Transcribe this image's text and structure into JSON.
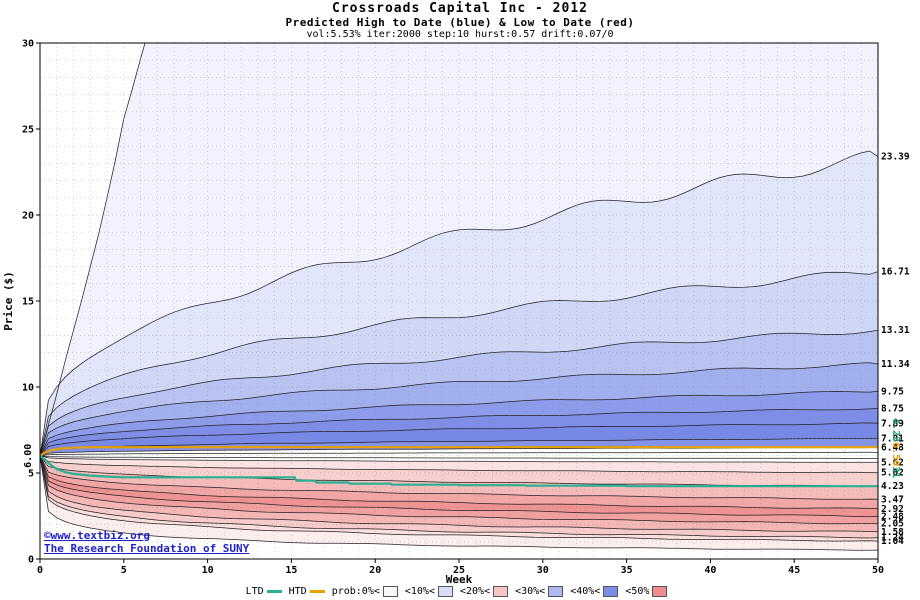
{
  "chart_data": {
    "type": "area",
    "title": "Crossroads Capital Inc - 2012",
    "subtitle": "Predicted High to Date (blue) &  Low to Date (red)",
    "params_line": "vol:5.53% iter:2000 step:10 hurst:0.57 drift:0.07/0",
    "xlabel": "Week",
    "ylabel": "Price ($)",
    "xlim": [
      0,
      50
    ],
    "ylim": [
      0,
      30
    ],
    "xticks": [
      0,
      5,
      10,
      15,
      20,
      25,
      30,
      35,
      40,
      45,
      50
    ],
    "yticks": [
      0,
      5,
      10,
      15,
      20,
      25,
      30
    ],
    "grid": true,
    "start_price": 6.0,
    "start_label": "6.00",
    "curve_exponent": 0.25,
    "high_boundaries": [
      {
        "final": 23.39,
        "label": "23.39"
      },
      {
        "final": 16.71,
        "label": "16.71"
      },
      {
        "final": 13.31,
        "label": "13.31"
      },
      {
        "final": 11.34,
        "label": "11.34"
      },
      {
        "final": 9.75,
        "label": "9.75"
      },
      {
        "final": 8.75,
        "label": "8.75"
      },
      {
        "final": 7.89,
        "label": "7.89"
      },
      {
        "final": 7.01,
        "label": "7.01"
      },
      {
        "final": 6.48,
        "label": "6.48"
      },
      {
        "final": 6.2,
        "label": ""
      }
    ],
    "low_boundaries": [
      {
        "final": 5.85,
        "label": ""
      },
      {
        "final": 5.62,
        "label": "5.62"
      },
      {
        "final": 5.02,
        "label": "5.02"
      },
      {
        "final": 4.23,
        "label": "4.23"
      },
      {
        "final": 3.47,
        "label": "3.47"
      },
      {
        "final": 2.92,
        "label": "2.92"
      },
      {
        "final": 2.48,
        "label": "2.48"
      },
      {
        "final": 2.05,
        "label": "2.05"
      },
      {
        "final": 1.58,
        "label": "1.58"
      },
      {
        "final": 1.24,
        "label": "1.24"
      },
      {
        "final": 1.04,
        "label": "1.04"
      }
    ],
    "max_curve": [
      [
        0,
        6
      ],
      [
        0.5,
        7.8
      ],
      [
        1,
        9.6
      ],
      [
        1.5,
        11.5
      ],
      [
        2,
        13.3
      ],
      [
        2.5,
        15.1
      ],
      [
        3,
        17.0
      ],
      [
        3.5,
        18.9
      ],
      [
        4,
        21.0
      ],
      [
        4.5,
        23.2
      ],
      [
        5,
        25.6
      ],
      [
        5.5,
        27.3
      ],
      [
        6,
        29.1
      ],
      [
        6.5,
        30.8
      ],
      [
        7,
        33.0
      ],
      [
        50,
        36.0
      ]
    ],
    "min_final": 0.52,
    "high_band_colors": [
      "#f1f2fd",
      "#e2e6fa",
      "#cfd6f6",
      "#b9c3f2",
      "#a2afee",
      "#8c9cea",
      "#7e8ee7",
      "#7888e6",
      "#8492e8"
    ],
    "low_band_colors": [
      "#fbe3e3",
      "#f8cfcf",
      "#f5baba",
      "#f2a6a6",
      "#ef9292",
      "#f1a0a0",
      "#f5b6b6",
      "#f8cbcb",
      "#fbdfdf",
      "#fdeeee"
    ],
    "ltd": {
      "label": "LTD",
      "color": "#2ab094",
      "final_label": "4.23",
      "points": [
        [
          0,
          6
        ],
        [
          0.3,
          5.78
        ],
        [
          0.6,
          5.5
        ],
        [
          1,
          5.22
        ],
        [
          1.5,
          5.05
        ],
        [
          2,
          4.95
        ],
        [
          3,
          4.85
        ],
        [
          4,
          4.79
        ],
        [
          5,
          4.75
        ],
        [
          15.2,
          4.75
        ],
        [
          15.3,
          4.55
        ],
        [
          16.4,
          4.55
        ],
        [
          16.5,
          4.45
        ],
        [
          18.4,
          4.45
        ],
        [
          18.5,
          4.38
        ],
        [
          20.9,
          4.38
        ],
        [
          21,
          4.32
        ],
        [
          24.9,
          4.32
        ],
        [
          25,
          4.29
        ],
        [
          28.9,
          4.29
        ],
        [
          29,
          4.26
        ],
        [
          34.9,
          4.26
        ],
        [
          35,
          4.23
        ],
        [
          50,
          4.23
        ]
      ]
    },
    "htd": {
      "label": "HTD",
      "color": "#e8a000",
      "final_label": "6.50",
      "points": [
        [
          0,
          6
        ],
        [
          0.3,
          6.2
        ],
        [
          0.7,
          6.33
        ],
        [
          1.2,
          6.42
        ],
        [
          2,
          6.47
        ],
        [
          3,
          6.5
        ],
        [
          50,
          6.5
        ]
      ]
    },
    "right_vertical_label": [
      {
        "text": "4.23",
        "color": "#1fa67d"
      },
      {
        "text": "6.50",
        "color": "#e8a000"
      },
      {
        "text": "31",
        "color": "#1fa67d"
      }
    ],
    "footer_links": [
      "©www.textbiz.org",
      "The Research Foundation of SUNY"
    ],
    "legend": [
      {
        "label": "LTD",
        "swatch": "line",
        "color": "#2ab094"
      },
      {
        "label": "HTD",
        "swatch": "line",
        "color": "#e8a000"
      },
      {
        "label": "prob:0%<",
        "swatch": "box",
        "color": "#f6f6fd"
      },
      {
        "label": "<10%<",
        "swatch": "box",
        "color": "#d9ddf7"
      },
      {
        "label": "<20%<",
        "swatch": "box",
        "color": "#f6c6c6"
      },
      {
        "label": "<30%<",
        "swatch": "box",
        "color": "#aeb9f0"
      },
      {
        "label": "<40%<",
        "swatch": "box",
        "color": "#7d8ce6"
      },
      {
        "label": "<50%",
        "swatch": "box",
        "color": "#ee8d8d"
      }
    ],
    "colors": {
      "grid": "#888888",
      "boundary_line": "#222222",
      "border": "#000000",
      "link": "#2121cc"
    }
  }
}
